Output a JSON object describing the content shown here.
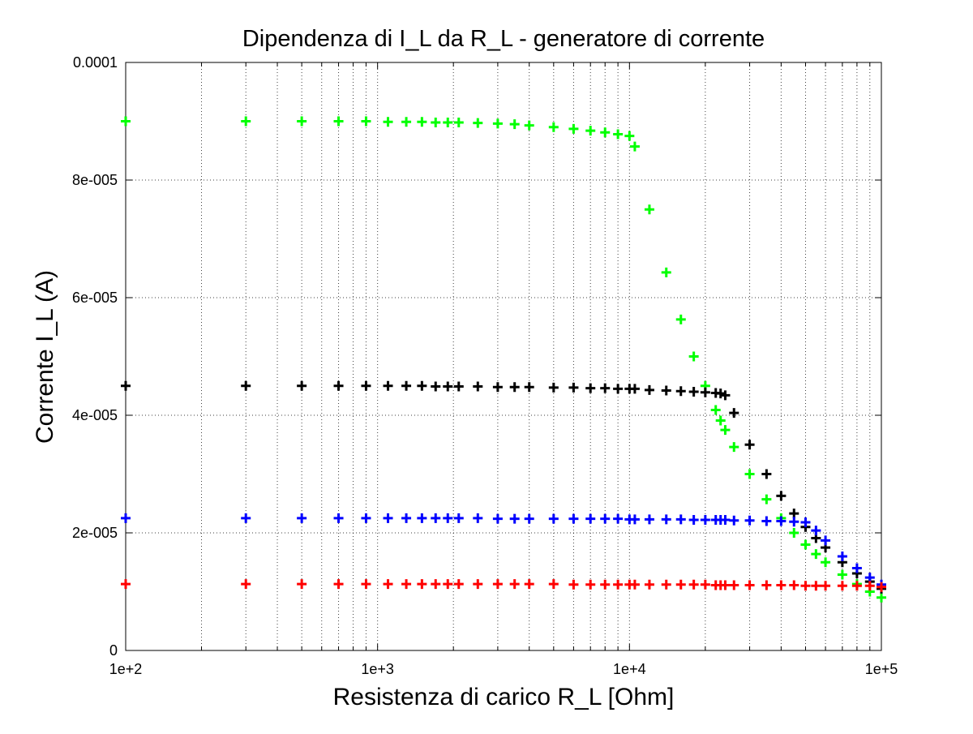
{
  "chart_data": {
    "type": "scatter",
    "title": "Dipendenza di I_L da R_L - generatore di corrente",
    "xlabel": "Resistenza di carico R_L [Ohm]",
    "ylabel": "Corrente I_L (A)",
    "x_scale": "log",
    "xlim": [
      100,
      100000
    ],
    "ylim": [
      0,
      0.0001
    ],
    "grid": true,
    "marker": "plus",
    "x_ticks": [
      {
        "value": 100,
        "label": "1e+2"
      },
      {
        "value": 1000,
        "label": "1e+3"
      },
      {
        "value": 10000,
        "label": "1e+4"
      },
      {
        "value": 100000,
        "label": "1e+5"
      }
    ],
    "y_ticks": [
      {
        "value": 0,
        "label": "0"
      },
      {
        "value": 2e-05,
        "label": "2e-005"
      },
      {
        "value": 4e-05,
        "label": "4e-005"
      },
      {
        "value": 6e-05,
        "label": "6e-005"
      },
      {
        "value": 8e-05,
        "label": "8e-005"
      },
      {
        "value": 0.0001,
        "label": "0.0001"
      }
    ],
    "x": [
      100,
      300,
      500,
      700,
      900,
      1100,
      1300,
      1500,
      1700,
      1900,
      2100,
      2500,
      3000,
      3500,
      4000,
      5000,
      6000,
      7000,
      8000,
      9000,
      10000,
      10500,
      12000,
      14000,
      16000,
      18000,
      20000,
      22000,
      23000,
      24000,
      26000,
      30000,
      35000,
      40000,
      45000,
      50000,
      55000,
      60000,
      70000,
      80000,
      90000,
      100000
    ],
    "series": [
      {
        "color": "#00ff00",
        "values": [
          9e-05,
          9e-05,
          9e-05,
          9e-05,
          9e-05,
          8.99e-05,
          8.99e-05,
          8.99e-05,
          8.98e-05,
          8.98e-05,
          8.98e-05,
          8.97e-05,
          8.96e-05,
          8.95e-05,
          8.93e-05,
          8.9e-05,
          8.87e-05,
          8.84e-05,
          8.81e-05,
          8.78e-05,
          8.75e-05,
          8.57e-05,
          7.5e-05,
          6.43e-05,
          5.63e-05,
          5e-05,
          4.5e-05,
          4.09e-05,
          3.91e-05,
          3.75e-05,
          3.46e-05,
          3e-05,
          2.57e-05,
          2.25e-05,
          2e-05,
          1.8e-05,
          1.64e-05,
          1.5e-05,
          1.29e-05,
          1.13e-05,
          1e-05,
          9e-06
        ]
      },
      {
        "color": "#000000",
        "values": [
          4.5e-05,
          4.5e-05,
          4.5e-05,
          4.5e-05,
          4.5e-05,
          4.5e-05,
          4.5e-05,
          4.5e-05,
          4.49e-05,
          4.49e-05,
          4.49e-05,
          4.49e-05,
          4.48e-05,
          4.48e-05,
          4.48e-05,
          4.47e-05,
          4.47e-05,
          4.46e-05,
          4.46e-05,
          4.45e-05,
          4.45e-05,
          4.45e-05,
          4.43e-05,
          4.42e-05,
          4.41e-05,
          4.4e-05,
          4.39e-05,
          4.38e-05,
          4.37e-05,
          4.34e-05,
          4.04e-05,
          3.5e-05,
          3e-05,
          2.63e-05,
          2.33e-05,
          2.1e-05,
          1.91e-05,
          1.75e-05,
          1.5e-05,
          1.31e-05,
          1.17e-05,
          1.05e-05
        ]
      },
      {
        "color": "#0000ff",
        "values": [
          2.25e-05,
          2.25e-05,
          2.25e-05,
          2.25e-05,
          2.25e-05,
          2.25e-05,
          2.25e-05,
          2.25e-05,
          2.25e-05,
          2.25e-05,
          2.25e-05,
          2.25e-05,
          2.24e-05,
          2.24e-05,
          2.24e-05,
          2.24e-05,
          2.24e-05,
          2.24e-05,
          2.24e-05,
          2.24e-05,
          2.23e-05,
          2.23e-05,
          2.23e-05,
          2.23e-05,
          2.23e-05,
          2.22e-05,
          2.22e-05,
          2.22e-05,
          2.22e-05,
          2.22e-05,
          2.21e-05,
          2.21e-05,
          2.2e-05,
          2.2e-05,
          2.19e-05,
          2.18e-05,
          2.04e-05,
          1.87e-05,
          1.6e-05,
          1.4e-05,
          1.24e-05,
          1.12e-05
        ]
      },
      {
        "color": "#ff0000",
        "values": [
          1.13e-05,
          1.13e-05,
          1.13e-05,
          1.13e-05,
          1.13e-05,
          1.13e-05,
          1.13e-05,
          1.13e-05,
          1.13e-05,
          1.13e-05,
          1.13e-05,
          1.13e-05,
          1.13e-05,
          1.13e-05,
          1.13e-05,
          1.13e-05,
          1.12e-05,
          1.12e-05,
          1.12e-05,
          1.12e-05,
          1.12e-05,
          1.12e-05,
          1.12e-05,
          1.12e-05,
          1.12e-05,
          1.12e-05,
          1.12e-05,
          1.11e-05,
          1.11e-05,
          1.11e-05,
          1.11e-05,
          1.11e-05,
          1.11e-05,
          1.11e-05,
          1.11e-05,
          1.1e-05,
          1.1e-05,
          1.1e-05,
          1.1e-05,
          1.1e-05,
          1.1e-05,
          1.08e-05
        ]
      }
    ]
  }
}
